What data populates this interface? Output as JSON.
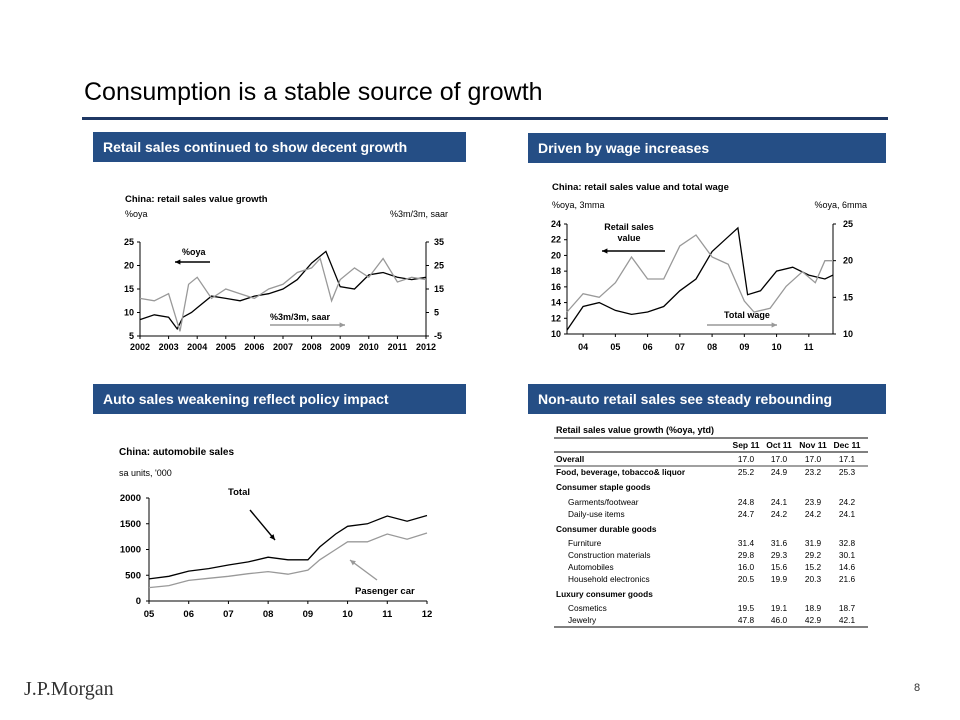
{
  "slide": {
    "title": "Consumption is a stable source of growth",
    "page_number": "8",
    "logo": "J.P.Morgan",
    "accent_color": "#254e85"
  },
  "panels": {
    "p1_header": "Retail sales continued to show decent growth",
    "p2_header": "Driven by wage increases",
    "p3_header": "Auto sales weakening reflect policy impact",
    "p4_header": "Non-auto retail sales see steady rebounding"
  },
  "chart_data": [
    {
      "type": "line",
      "title": "China: retail sales value growth",
      "left_axis_label": "%oya",
      "right_axis_label": "%3m/3m, saar",
      "x_ticks": [
        "2002",
        "2003",
        "2004",
        "2005",
        "2006",
        "2007",
        "2008",
        "2009",
        "2010",
        "2011",
        "2012"
      ],
      "xlim": [
        2002,
        2012
      ],
      "ylim_left": [
        5,
        25
      ],
      "y_ticks_left": [
        5,
        10,
        15,
        20,
        25
      ],
      "ylim_right": [
        -5,
        35
      ],
      "y_ticks_right": [
        "-5",
        "5",
        "15",
        "25",
        "35"
      ],
      "annotations": [
        "%oya",
        "%3m/3m, saar"
      ],
      "series": [
        {
          "name": "%oya",
          "axis": "left",
          "color": "#000000",
          "x": [
            2002,
            2002.5,
            2003,
            2003.3,
            2003.5,
            2003.8,
            2004,
            2004.5,
            2005,
            2005.5,
            2006,
            2006.5,
            2007,
            2007.5,
            2008,
            2008.5,
            2009,
            2009.5,
            2010,
            2010.5,
            2011,
            2011.5,
            2012
          ],
          "y": [
            8.5,
            9.5,
            9.0,
            6.5,
            9.0,
            10.0,
            11.0,
            13.5,
            13.0,
            12.5,
            13.5,
            14.0,
            15.0,
            17.0,
            20.5,
            23.0,
            15.5,
            15.0,
            18.0,
            18.5,
            17.5,
            17.0,
            17.5
          ]
        },
        {
          "name": "%3m/3m, saar",
          "axis": "right",
          "color": "#999999",
          "x": [
            2002,
            2002.5,
            2003,
            2003.4,
            2003.7,
            2004,
            2004.5,
            2005,
            2005.5,
            2006,
            2006.5,
            2007,
            2007.5,
            2008,
            2008.3,
            2008.7,
            2009,
            2009.5,
            2010,
            2010.5,
            2011,
            2011.5,
            2012
          ],
          "y": [
            11,
            10,
            13,
            -3,
            17,
            20,
            11,
            15,
            13,
            11,
            15,
            17,
            22,
            24,
            28,
            10,
            19,
            24,
            20,
            28,
            18,
            20,
            19
          ]
        }
      ]
    },
    {
      "type": "line",
      "title": "China: retail sales value and total wage",
      "left_axis_label": "%oya, 3mma",
      "right_axis_label": "%oya, 6mma",
      "x_ticks": [
        "04",
        "05",
        "06",
        "07",
        "08",
        "09",
        "10",
        "11"
      ],
      "xlim": [
        2003.5,
        2011.75
      ],
      "ylim_left": [
        10,
        24
      ],
      "y_ticks_left": [
        10,
        12,
        14,
        16,
        18,
        20,
        22,
        24
      ],
      "ylim_right": [
        10,
        25
      ],
      "y_ticks_right": [
        10,
        15,
        20,
        25
      ],
      "annotations": [
        "Retail sales value",
        "Total wage"
      ],
      "series": [
        {
          "name": "Retail sales value",
          "axis": "left",
          "color": "#000000",
          "x": [
            2003.5,
            2004,
            2004.5,
            2005,
            2005.5,
            2006,
            2006.5,
            2007,
            2007.5,
            2008,
            2008.4,
            2008.8,
            2009.1,
            2009.5,
            2010,
            2010.5,
            2011,
            2011.5,
            2011.75
          ],
          "y": [
            10.5,
            13.5,
            14.0,
            13.0,
            12.5,
            12.8,
            13.5,
            15.5,
            17.0,
            20.5,
            22.0,
            23.5,
            15.0,
            15.5,
            18.0,
            18.5,
            17.5,
            17.0,
            17.5
          ]
        },
        {
          "name": "Total wage",
          "axis": "right",
          "color": "#999999",
          "x": [
            2003.5,
            2004,
            2004.5,
            2005,
            2005.5,
            2006,
            2006.5,
            2007,
            2007.5,
            2008,
            2008.5,
            2009,
            2009.3,
            2009.8,
            2010.3,
            2010.8,
            2011.2,
            2011.5,
            2011.75
          ],
          "y": [
            13.0,
            15.5,
            15.0,
            17.0,
            20.5,
            17.5,
            17.5,
            22.0,
            23.5,
            20.5,
            19.5,
            14.5,
            13.0,
            13.5,
            16.5,
            18.5,
            17.0,
            20.0,
            20.0
          ]
        }
      ]
    },
    {
      "type": "line",
      "title": "China: automobile sales",
      "ylabel": "sa units, '000",
      "x_ticks": [
        "05",
        "06",
        "07",
        "08",
        "09",
        "10",
        "11",
        "12"
      ],
      "xlim": [
        2005,
        2012
      ],
      "ylim": [
        0,
        2000
      ],
      "y_ticks": [
        "0",
        "500",
        "1000",
        "1500",
        "2000"
      ],
      "annotations": [
        "Total",
        "Pasenger car"
      ],
      "series": [
        {
          "name": "Total",
          "color": "#000000",
          "x": [
            2005,
            2005.5,
            2006,
            2006.5,
            2007,
            2007.5,
            2008,
            2008.5,
            2009,
            2009.3,
            2009.7,
            2010,
            2010.5,
            2011,
            2011.5,
            2012
          ],
          "y": [
            430,
            480,
            580,
            630,
            700,
            760,
            850,
            800,
            800,
            1050,
            1300,
            1450,
            1500,
            1650,
            1550,
            1660
          ]
        },
        {
          "name": "Pasenger car",
          "color": "#999999",
          "x": [
            2005,
            2005.5,
            2006,
            2006.5,
            2007,
            2007.5,
            2008,
            2008.5,
            2009,
            2009.3,
            2009.7,
            2010,
            2010.5,
            2011,
            2011.5,
            2012
          ],
          "y": [
            260,
            300,
            400,
            440,
            480,
            530,
            570,
            520,
            600,
            800,
            1000,
            1150,
            1150,
            1300,
            1200,
            1320
          ]
        }
      ]
    },
    {
      "type": "table",
      "title": "Retail sales value growth (%oya, ytd)",
      "columns": [
        "Sep 11",
        "Oct 11",
        "Nov 11",
        "Dec 11"
      ],
      "rows": [
        {
          "label": "Overall",
          "bold": true,
          "values": [
            "17.0",
            "17.0",
            "17.0",
            "17.1"
          ]
        },
        {
          "label": "Food, beverage, tobacco& liquor",
          "bold": true,
          "values": [
            "25.2",
            "24.9",
            "23.2",
            "25.3"
          ]
        },
        {
          "label": "Consumer staple goods",
          "bold": true,
          "values": [
            "",
            "",
            "",
            ""
          ]
        },
        {
          "label": "Garments/footwear",
          "indent": true,
          "values": [
            "24.8",
            "24.1",
            "23.9",
            "24.2"
          ]
        },
        {
          "label": "Daily-use items",
          "indent": true,
          "values": [
            "24.7",
            "24.2",
            "24.2",
            "24.1"
          ]
        },
        {
          "label": "Consumer durable goods",
          "bold": true,
          "values": [
            "",
            "",
            "",
            ""
          ]
        },
        {
          "label": "Furniture",
          "indent": true,
          "values": [
            "31.4",
            "31.6",
            "31.9",
            "32.8"
          ]
        },
        {
          "label": "Construction materials",
          "indent": true,
          "values": [
            "29.8",
            "29.3",
            "29.2",
            "30.1"
          ]
        },
        {
          "label": "Automobiles",
          "indent": true,
          "values": [
            "16.0",
            "15.6",
            "15.2",
            "14.6"
          ]
        },
        {
          "label": "Household electronics",
          "indent": true,
          "values": [
            "20.5",
            "19.9",
            "20.3",
            "21.6"
          ]
        },
        {
          "label": "Luxury consumer goods",
          "bold": true,
          "values": [
            "",
            "",
            "",
            ""
          ]
        },
        {
          "label": "Cosmetics",
          "indent": true,
          "values": [
            "19.5",
            "19.1",
            "18.9",
            "18.7"
          ]
        },
        {
          "label": "Jewelry",
          "indent": true,
          "values": [
            "47.8",
            "46.0",
            "42.9",
            "42.1"
          ]
        }
      ]
    }
  ]
}
